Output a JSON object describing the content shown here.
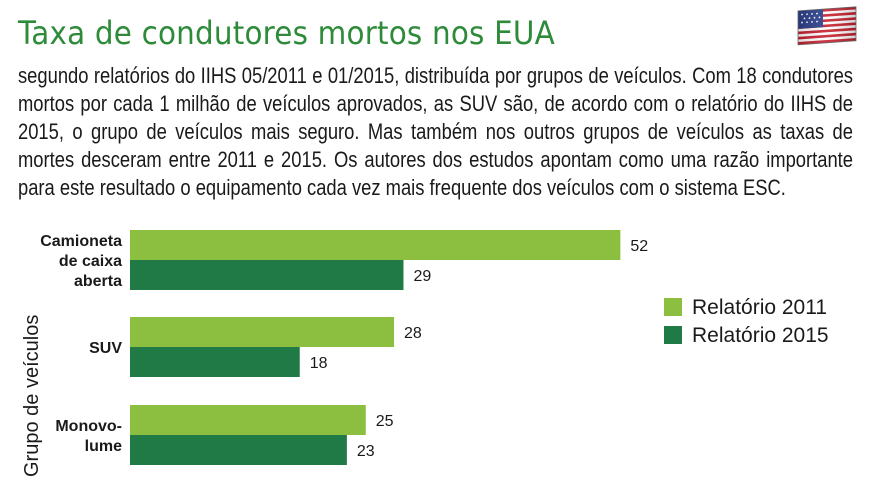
{
  "header": {
    "title": "Taxa de condutores mortos nos EUA",
    "flag_icon": "usa-flag-icon",
    "description": "segundo relatórios do IIHS 05/2011 e 01/2015, distribuída por grupos de veículos. Com 18 condutores mortos por cada 1 milhão de veículos aprovados, as SUV são, de acordo com o relatório do IIHS de 2015, o grupo de veículos mais seguro. Mas também nos outros grupos de veículos as taxas de mortes desceram entre 2011 e 2015. Os autores dos estudos apontam como uma razão importante para este resultado o equipamento cada vez mais frequente dos veículos com o sistema ESC."
  },
  "colors": {
    "title": "#2e8b3a",
    "series_2011": "#8cbf3f",
    "series_2015": "#1f7a46"
  },
  "chart_data": {
    "type": "bar",
    "orientation": "horizontal",
    "ylabel": "Grupo de veículos",
    "categories": [
      [
        "Camioneta",
        "de caixa",
        "aberta"
      ],
      [
        "SUV"
      ],
      [
        "Monovo-",
        "lume"
      ]
    ],
    "series": [
      {
        "name": "Relatório 2011",
        "values": [
          52,
          28,
          25
        ]
      },
      {
        "name": "Relatório 2015",
        "values": [
          29,
          18,
          23
        ]
      }
    ],
    "xlim": [
      0,
      60
    ],
    "legend_position": "right",
    "grid": false
  }
}
